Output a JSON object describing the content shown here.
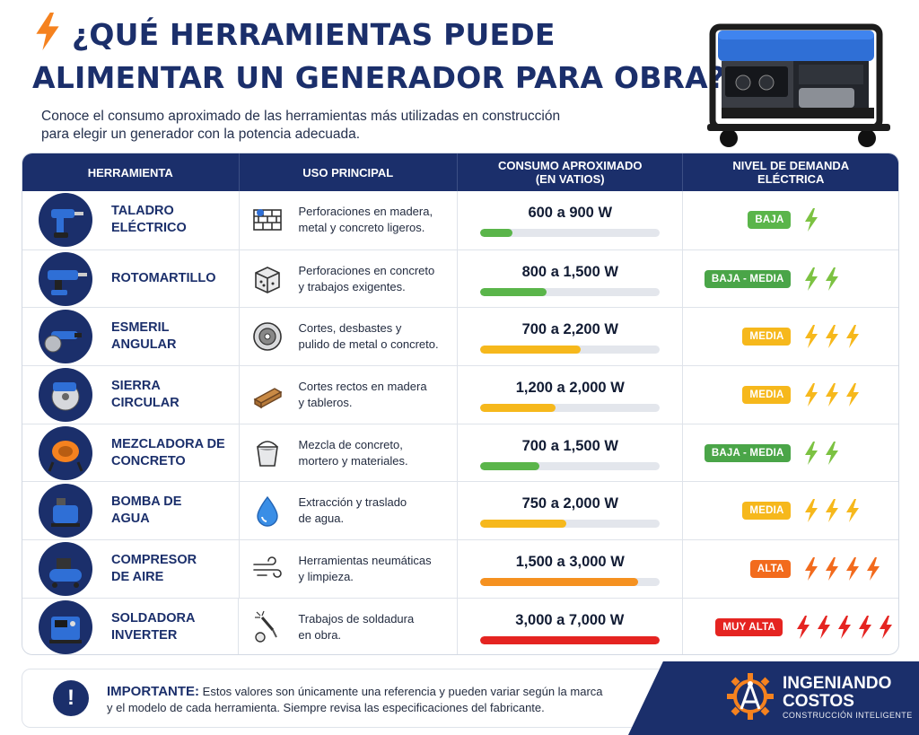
{
  "header": {
    "title_line1": "¿QUÉ HERRAMIENTAS PUEDE",
    "title_line2": "ALIMENTAR UN GENERADOR PARA OBRA?",
    "subtitle_line1": "Conoce el consumo aproximado de las herramientas más utilizadas en construcción",
    "subtitle_line2": "para elegir un generador con la potencia adecuada."
  },
  "table": {
    "headers": {
      "tool": "HERRAMIENTA",
      "use": "USO PRINCIPAL",
      "consumption_line1": "CONSUMO APROXIMADO",
      "consumption_line2": "(EN VATIOS)",
      "level_line1": "NIVEL DE DEMANDA",
      "level_line2": "ELÉCTRICA"
    },
    "rows": [
      {
        "name1": "TALADRO",
        "name2": "ELÉCTRICO",
        "use1": "Perforaciones en madera,",
        "use2": "metal y concreto ligeros.",
        "consumption": "600 a 900 W",
        "level": "BAJA",
        "bolts": 1,
        "bar_percent": 18,
        "bar_color": "#5ab54a",
        "badge_color": "#5ab54a",
        "bolt_color": "#7cc242",
        "tool_icon": "drill-icon",
        "use_icon": "brick-wall-icon"
      },
      {
        "name1": "ROTOMARTILLO",
        "name2": "",
        "use1": "Perforaciones en concreto",
        "use2": "y trabajos exigentes.",
        "consumption": "800 a 1,500 W",
        "level": "BAJA - MEDIA",
        "bolts": 2,
        "bar_percent": 37,
        "bar_color": "#5ab54a",
        "badge_color": "#4aa548",
        "bolt_color": "#7cc242",
        "tool_icon": "rotary-hammer-icon",
        "use_icon": "concrete-block-icon"
      },
      {
        "name1": "ESMERIL",
        "name2": "ANGULAR",
        "use1": "Cortes, desbastes y",
        "use2": "pulido de metal o concreto.",
        "consumption": "700 a 2,200 W",
        "level": "MEDIA",
        "bolts": 3,
        "bar_percent": 56,
        "bar_color": "#f6b81c",
        "badge_color": "#f6b81c",
        "bolt_color": "#f6b81c",
        "tool_icon": "angle-grinder-icon",
        "use_icon": "grinding-disc-icon"
      },
      {
        "name1": "SIERRA",
        "name2": "CIRCULAR",
        "use1": "Cortes rectos en madera",
        "use2": "y tableros.",
        "consumption": "1,200 a 2,000 W",
        "level": "MEDIA",
        "bolts": 3,
        "bar_percent": 42,
        "bar_color": "#f6b81c",
        "badge_color": "#f6b81c",
        "bolt_color": "#f6b81c",
        "tool_icon": "circular-saw-icon",
        "use_icon": "wood-plank-icon"
      },
      {
        "name1": "MEZCLADORA DE",
        "name2": "CONCRETO",
        "use1": "Mezcla de concreto,",
        "use2": "mortero y materiales.",
        "consumption": "700 a 1,500 W",
        "level": "BAJA - MEDIA",
        "bolts": 2,
        "bar_percent": 33,
        "bar_color": "#5ab54a",
        "badge_color": "#4aa548",
        "bolt_color": "#7cc242",
        "tool_icon": "concrete-mixer-icon",
        "use_icon": "bucket-icon"
      },
      {
        "name1": "BOMBA DE",
        "name2": "AGUA",
        "use1": "Extracción y traslado",
        "use2": "de agua.",
        "consumption": "750 a 2,000 W",
        "level": "MEDIA",
        "bolts": 3,
        "bar_percent": 48,
        "bar_color": "#f6b81c",
        "badge_color": "#f6b81c",
        "bolt_color": "#f6b81c",
        "tool_icon": "water-pump-icon",
        "use_icon": "water-drop-icon"
      },
      {
        "name1": "COMPRESOR",
        "name2": "DE AIRE",
        "use1": "Herramientas neumáticas",
        "use2": "y limpieza.",
        "consumption": "1,500 a 3,000 W",
        "level": "ALTA",
        "bolts": 4,
        "bar_percent": 88,
        "bar_color": "#f59120",
        "badge_color": "#f26b1d",
        "bolt_color": "#f26b1d",
        "tool_icon": "air-compressor-icon",
        "use_icon": "air-flow-icon"
      },
      {
        "name1": "SOLDADORA",
        "name2": "INVERTER",
        "use1": "Trabajos de soldadura",
        "use2": "en obra.",
        "consumption": "3,000 a 7,000 W",
        "level": "MUY ALTA",
        "bolts": 5,
        "bar_percent": 100,
        "bar_color": "#e52421",
        "badge_color": "#e52421",
        "bolt_color": "#e52421",
        "tool_icon": "inverter-welder-icon",
        "use_icon": "welding-torch-icon"
      }
    ]
  },
  "note": {
    "label": "IMPORTANTE:",
    "text_part1": " Estos valores son únicamente una referencia y pueden variar según la marca",
    "text_part2": "y el modelo de cada herramienta. Siempre revisa las especificaciones del fabricante."
  },
  "brand": {
    "name_line1": "INGENIANDO",
    "name_line2": "COSTOS",
    "tagline": "CONSTRUCCIÓN INTELIGENTE"
  },
  "colors": {
    "navy": "#1b2f6b",
    "accent_orange": "#f5821f"
  }
}
